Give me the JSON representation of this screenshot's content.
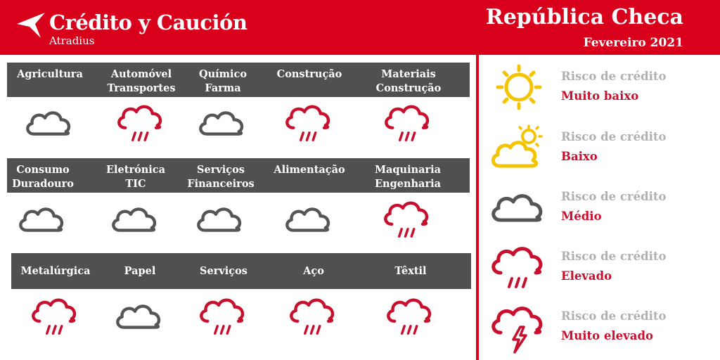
{
  "header": {
    "brand_name": "Crédito y Caución",
    "brand_sub": "Atradius",
    "country": "República Checa",
    "date": "Fevereiro 2021",
    "color": "#d9001b"
  },
  "colors": {
    "cloud_grey": "#555555",
    "rain_red": "#c8102e",
    "sun_yellow": "#f5c400",
    "bar_grey": "#505050"
  },
  "sectors": [
    {
      "name": "Agricultura",
      "risk": "medio"
    },
    {
      "name": "Automóvel\nTransportes",
      "risk": "elevado"
    },
    {
      "name": "Químico\nFarma",
      "risk": "medio"
    },
    {
      "name": "Construção",
      "risk": "elevado"
    },
    {
      "name": "Materiais\nConstrução",
      "risk": "elevado"
    },
    {
      "name": "Consumo\nDuradouro",
      "risk": "medio"
    },
    {
      "name": "Eletrónica\nTIC",
      "risk": "medio"
    },
    {
      "name": "Serviços\nFinanceiros",
      "risk": "medio"
    },
    {
      "name": "Alimentação",
      "risk": "medio"
    },
    {
      "name": "Maquinaria\nEngenharia",
      "risk": "elevado"
    },
    {
      "name": "Metalúrgica",
      "risk": "elevado"
    },
    {
      "name": "Papel",
      "risk": "medio"
    },
    {
      "name": "Serviços",
      "risk": "elevado"
    },
    {
      "name": "Aço",
      "risk": "elevado"
    },
    {
      "name": "Têxtil",
      "risk": "elevado"
    }
  ],
  "legend": [
    {
      "title": "Risco de crédito",
      "level": "Muito baixo",
      "icon": "sun-icon"
    },
    {
      "title": "Risco de crédito",
      "level": "Baixo",
      "icon": "sun-cloud-icon"
    },
    {
      "title": "Risco de crédito",
      "level": "Médio",
      "icon": "cloud-icon"
    },
    {
      "title": "Risco de crédito",
      "level": "Elevado",
      "icon": "rain-cloud-icon"
    },
    {
      "title": "Risco de crédito",
      "level": "Muito elevado",
      "icon": "storm-cloud-icon"
    }
  ]
}
